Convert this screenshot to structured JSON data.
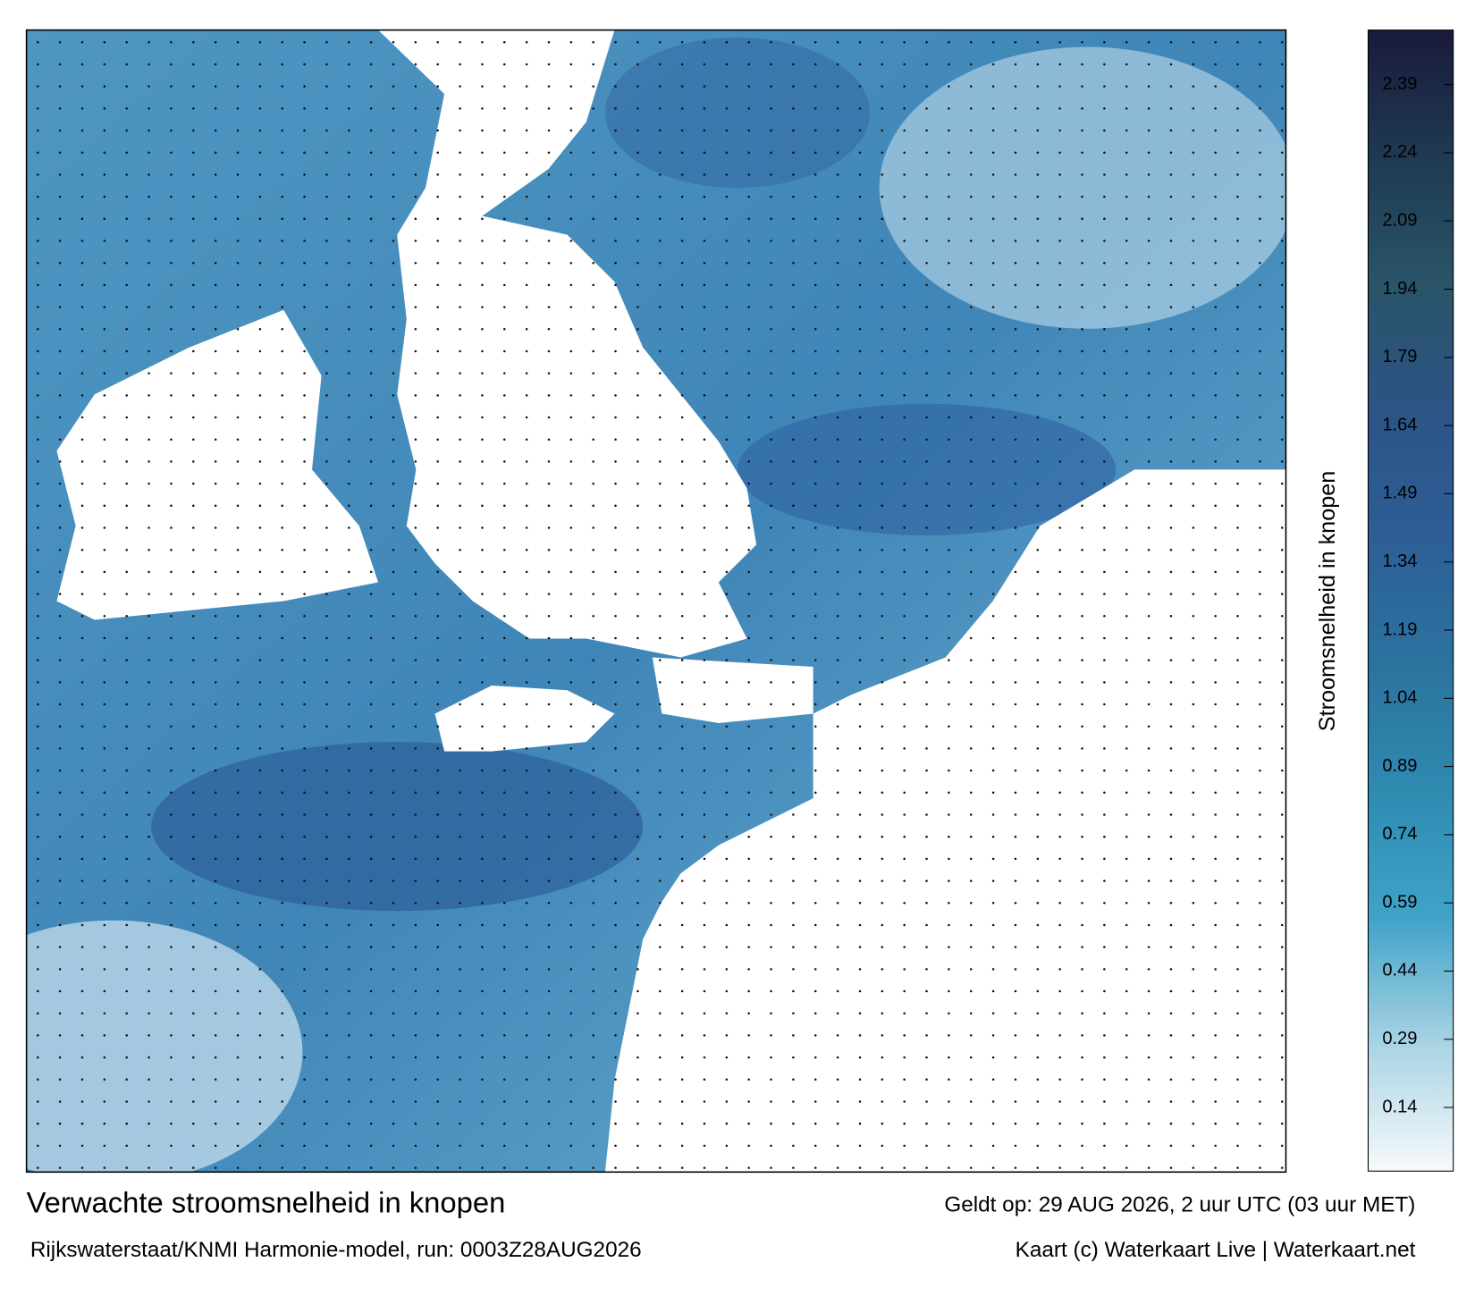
{
  "title": "Verwachte stroomsnelheid in knopen",
  "valid_time": "Geldt op: 29 AUG 2026, 2 uur UTC (03 uur MET)",
  "model_run": "Rijkswaterstaat/KNMI Harmonie-model, run: 0003Z28AUG2026",
  "credit": "Kaart (c) Waterkaart Live | Waterkaart.net",
  "colorbar": {
    "label": "Stroomsnelheid in knopen",
    "clim": [
      0,
      2.51
    ],
    "ticks": [
      0.14,
      0.29,
      0.44,
      0.59,
      0.74,
      0.89,
      1.04,
      1.19,
      1.34,
      1.49,
      1.64,
      1.79,
      1.94,
      2.09,
      2.24,
      2.39
    ],
    "colors": [
      "#f7fafc",
      "#a9d3e4",
      "#3fa3c8",
      "#2f8ab0",
      "#2b739f",
      "#2d5e96",
      "#2c5486",
      "#2a5468",
      "#1e3a52",
      "#1a1a3c"
    ]
  }
}
